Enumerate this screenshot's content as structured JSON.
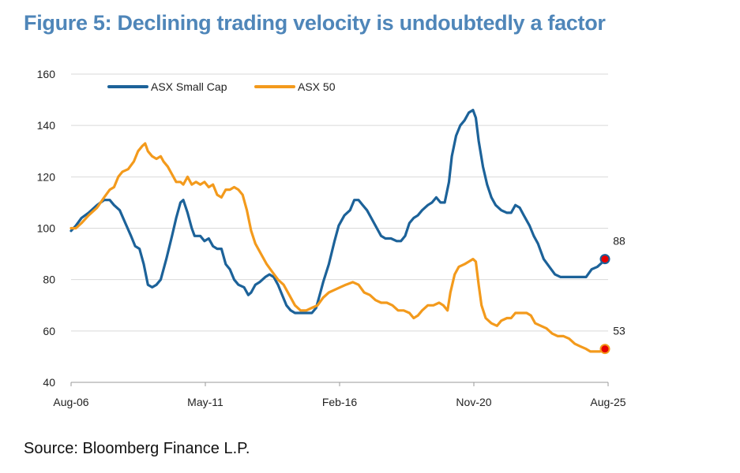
{
  "title": "Figure 5: Declining trading velocity is undoubtedly a factor",
  "source": "Source: Bloomberg Finance L.P.",
  "chart_data": {
    "type": "line",
    "ylim": [
      40,
      160
    ],
    "yticks": [
      40,
      60,
      80,
      100,
      120,
      140,
      160
    ],
    "xlim": [
      2006.58,
      2025.58
    ],
    "xticks": [
      {
        "label": "Aug-06",
        "x": 2006.58
      },
      {
        "label": "May-11",
        "x": 2011.33
      },
      {
        "label": "Feb-16",
        "x": 2016.08
      },
      {
        "label": "Nov-20",
        "x": 2020.83
      },
      {
        "label": "Aug-25",
        "x": 2025.58
      }
    ],
    "grid": true,
    "legend_position": "top-left",
    "series": [
      {
        "name": "ASX Small Cap",
        "color": "#1c6299",
        "end_label": "88",
        "points": [
          [
            2006.58,
            99
          ],
          [
            2006.75,
            101
          ],
          [
            2006.95,
            104
          ],
          [
            2007.2,
            106
          ],
          [
            2007.5,
            109
          ],
          [
            2007.75,
            111
          ],
          [
            2007.95,
            111
          ],
          [
            2008.1,
            109
          ],
          [
            2008.3,
            107
          ],
          [
            2008.5,
            102
          ],
          [
            2008.7,
            97
          ],
          [
            2008.85,
            93
          ],
          [
            2009.0,
            92
          ],
          [
            2009.15,
            86
          ],
          [
            2009.3,
            78
          ],
          [
            2009.45,
            77
          ],
          [
            2009.6,
            78
          ],
          [
            2009.75,
            80
          ],
          [
            2009.95,
            88
          ],
          [
            2010.15,
            97
          ],
          [
            2010.3,
            104
          ],
          [
            2010.45,
            110
          ],
          [
            2010.55,
            111
          ],
          [
            2010.7,
            106
          ],
          [
            2010.85,
            100
          ],
          [
            2010.95,
            97
          ],
          [
            2011.15,
            97
          ],
          [
            2011.3,
            95
          ],
          [
            2011.45,
            96
          ],
          [
            2011.6,
            93
          ],
          [
            2011.75,
            92
          ],
          [
            2011.9,
            92
          ],
          [
            2012.05,
            86
          ],
          [
            2012.2,
            84
          ],
          [
            2012.35,
            80
          ],
          [
            2012.5,
            78
          ],
          [
            2012.7,
            77
          ],
          [
            2012.85,
            74
          ],
          [
            2012.95,
            75
          ],
          [
            2013.1,
            78
          ],
          [
            2013.25,
            79
          ],
          [
            2013.45,
            81
          ],
          [
            2013.6,
            82
          ],
          [
            2013.75,
            81
          ],
          [
            2013.9,
            78
          ],
          [
            2014.05,
            74
          ],
          [
            2014.2,
            70
          ],
          [
            2014.35,
            68
          ],
          [
            2014.5,
            67
          ],
          [
            2014.7,
            67
          ],
          [
            2014.9,
            67
          ],
          [
            2015.1,
            67
          ],
          [
            2015.25,
            69
          ],
          [
            2015.35,
            73
          ],
          [
            2015.5,
            79
          ],
          [
            2015.7,
            86
          ],
          [
            2015.9,
            95
          ],
          [
            2016.05,
            101
          ],
          [
            2016.25,
            105
          ],
          [
            2016.45,
            107
          ],
          [
            2016.6,
            111
          ],
          [
            2016.75,
            111
          ],
          [
            2016.9,
            109
          ],
          [
            2017.05,
            107
          ],
          [
            2017.2,
            104
          ],
          [
            2017.4,
            100
          ],
          [
            2017.55,
            97
          ],
          [
            2017.7,
            96
          ],
          [
            2017.9,
            96
          ],
          [
            2018.1,
            95
          ],
          [
            2018.25,
            95
          ],
          [
            2018.4,
            97
          ],
          [
            2018.55,
            102
          ],
          [
            2018.7,
            104
          ],
          [
            2018.85,
            105
          ],
          [
            2019.0,
            107
          ],
          [
            2019.2,
            109
          ],
          [
            2019.35,
            110
          ],
          [
            2019.5,
            112
          ],
          [
            2019.65,
            110
          ],
          [
            2019.8,
            110
          ],
          [
            2019.95,
            118
          ],
          [
            2020.05,
            128
          ],
          [
            2020.2,
            136
          ],
          [
            2020.35,
            140
          ],
          [
            2020.5,
            142
          ],
          [
            2020.65,
            145
          ],
          [
            2020.8,
            146
          ],
          [
            2020.9,
            143
          ],
          [
            2021.0,
            134
          ],
          [
            2021.15,
            124
          ],
          [
            2021.3,
            117
          ],
          [
            2021.45,
            112
          ],
          [
            2021.6,
            109
          ],
          [
            2021.8,
            107
          ],
          [
            2022.0,
            106
          ],
          [
            2022.15,
            106
          ],
          [
            2022.3,
            109
          ],
          [
            2022.45,
            108
          ],
          [
            2022.6,
            105
          ],
          [
            2022.8,
            101
          ],
          [
            2022.95,
            97
          ],
          [
            2023.1,
            94
          ],
          [
            2023.3,
            88
          ],
          [
            2023.5,
            85
          ],
          [
            2023.7,
            82
          ],
          [
            2023.9,
            81
          ],
          [
            2024.1,
            81
          ],
          [
            2024.3,
            81
          ],
          [
            2024.55,
            81
          ],
          [
            2024.8,
            81
          ],
          [
            2025.0,
            84
          ],
          [
            2025.2,
            85
          ],
          [
            2025.4,
            87
          ],
          [
            2025.58,
            88
          ]
        ]
      },
      {
        "name": "ASX 50",
        "color": "#f39a1c",
        "end_label": "53",
        "points": [
          [
            2006.58,
            100
          ],
          [
            2006.75,
            100
          ],
          [
            2006.95,
            102
          ],
          [
            2007.2,
            105
          ],
          [
            2007.5,
            108
          ],
          [
            2007.75,
            112
          ],
          [
            2007.95,
            115
          ],
          [
            2008.1,
            116
          ],
          [
            2008.25,
            120
          ],
          [
            2008.4,
            122
          ],
          [
            2008.6,
            123
          ],
          [
            2008.8,
            126
          ],
          [
            2008.95,
            130
          ],
          [
            2009.1,
            132
          ],
          [
            2009.2,
            133
          ],
          [
            2009.3,
            130
          ],
          [
            2009.45,
            128
          ],
          [
            2009.6,
            127
          ],
          [
            2009.75,
            128
          ],
          [
            2009.85,
            126
          ],
          [
            2010.0,
            124
          ],
          [
            2010.15,
            121
          ],
          [
            2010.3,
            118
          ],
          [
            2010.45,
            118
          ],
          [
            2010.55,
            117
          ],
          [
            2010.7,
            120
          ],
          [
            2010.85,
            117
          ],
          [
            2011.0,
            118
          ],
          [
            2011.15,
            117
          ],
          [
            2011.3,
            118
          ],
          [
            2011.45,
            116
          ],
          [
            2011.6,
            117
          ],
          [
            2011.75,
            113
          ],
          [
            2011.9,
            112
          ],
          [
            2012.05,
            115
          ],
          [
            2012.2,
            115
          ],
          [
            2012.35,
            116
          ],
          [
            2012.5,
            115
          ],
          [
            2012.65,
            113
          ],
          [
            2012.8,
            107
          ],
          [
            2012.95,
            99
          ],
          [
            2013.1,
            94
          ],
          [
            2013.3,
            90
          ],
          [
            2013.5,
            86
          ],
          [
            2013.7,
            83
          ],
          [
            2013.9,
            80
          ],
          [
            2014.1,
            78
          ],
          [
            2014.3,
            74
          ],
          [
            2014.5,
            70
          ],
          [
            2014.7,
            68
          ],
          [
            2014.9,
            68
          ],
          [
            2015.1,
            69
          ],
          [
            2015.3,
            70
          ],
          [
            2015.5,
            73
          ],
          [
            2015.7,
            75
          ],
          [
            2015.9,
            76
          ],
          [
            2016.1,
            77
          ],
          [
            2016.3,
            78
          ],
          [
            2016.55,
            79
          ],
          [
            2016.75,
            78
          ],
          [
            2016.95,
            75
          ],
          [
            2017.15,
            74
          ],
          [
            2017.35,
            72
          ],
          [
            2017.55,
            71
          ],
          [
            2017.75,
            71
          ],
          [
            2017.95,
            70
          ],
          [
            2018.15,
            68
          ],
          [
            2018.35,
            68
          ],
          [
            2018.55,
            67
          ],
          [
            2018.7,
            65
          ],
          [
            2018.85,
            66
          ],
          [
            2019.0,
            68
          ],
          [
            2019.2,
            70
          ],
          [
            2019.4,
            70
          ],
          [
            2019.6,
            71
          ],
          [
            2019.75,
            70
          ],
          [
            2019.9,
            68
          ],
          [
            2020.0,
            75
          ],
          [
            2020.15,
            82
          ],
          [
            2020.3,
            85
          ],
          [
            2020.5,
            86
          ],
          [
            2020.65,
            87
          ],
          [
            2020.8,
            88
          ],
          [
            2020.9,
            87
          ],
          [
            2021.0,
            78
          ],
          [
            2021.1,
            70
          ],
          [
            2021.25,
            65
          ],
          [
            2021.45,
            63
          ],
          [
            2021.65,
            62
          ],
          [
            2021.8,
            64
          ],
          [
            2022.0,
            65
          ],
          [
            2022.15,
            65
          ],
          [
            2022.3,
            67
          ],
          [
            2022.5,
            67
          ],
          [
            2022.7,
            67
          ],
          [
            2022.85,
            66
          ],
          [
            2023.0,
            63
          ],
          [
            2023.2,
            62
          ],
          [
            2023.4,
            61
          ],
          [
            2023.6,
            59
          ],
          [
            2023.8,
            58
          ],
          [
            2024.0,
            58
          ],
          [
            2024.2,
            57
          ],
          [
            2024.4,
            55
          ],
          [
            2024.6,
            54
          ],
          [
            2024.8,
            53
          ],
          [
            2024.95,
            52
          ],
          [
            2025.15,
            52
          ],
          [
            2025.3,
            52
          ],
          [
            2025.45,
            53
          ],
          [
            2025.58,
            53
          ]
        ]
      }
    ]
  }
}
